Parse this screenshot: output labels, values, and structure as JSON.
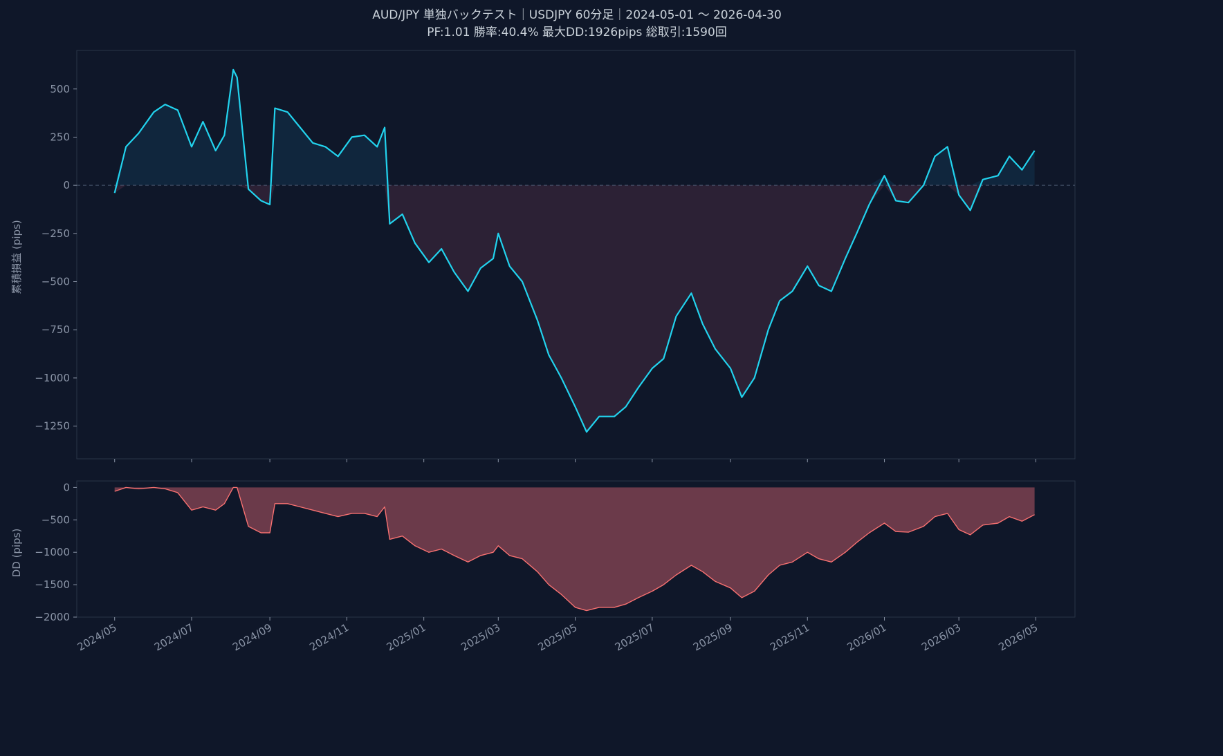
{
  "chart_data": [
    {
      "type": "line",
      "title": "AUD/JPY 単独バックテスト｜USDJPY 60分足｜2024-05-01 〜 2026-04-30",
      "subtitle": "PF:1.01  勝率:40.4%  最大DD:1926pips  総取引:1590回",
      "ylabel": "累積損益 (pips)",
      "ylim": [
        -1420,
        700
      ],
      "yticks": [
        500,
        250,
        0,
        -250,
        -500,
        -750,
        -1000,
        -1250
      ],
      "ytick_labels": [
        "500",
        "250",
        "0",
        "−250",
        "−500",
        "−750",
        "−1000",
        "−1250"
      ],
      "zero_line": true,
      "series": [
        {
          "color": "#22d3ee",
          "fill_positive": "#10263d",
          "fill_negative": "#2c2135",
          "x": [
            "2024-05-01",
            "2024-05-10",
            "2024-05-20",
            "2024-06-01",
            "2024-06-10",
            "2024-06-20",
            "2024-07-01",
            "2024-07-10",
            "2024-07-20",
            "2024-07-27",
            "2024-08-03",
            "2024-08-06",
            "2024-08-15",
            "2024-08-25",
            "2024-09-01",
            "2024-09-05",
            "2024-09-15",
            "2024-09-25",
            "2024-10-05",
            "2024-10-15",
            "2024-10-25",
            "2024-11-05",
            "2024-11-15",
            "2024-11-25",
            "2024-12-01",
            "2024-12-05",
            "2024-12-15",
            "2024-12-25",
            "2025-01-05",
            "2025-01-15",
            "2025-01-25",
            "2025-02-05",
            "2025-02-15",
            "2025-02-25",
            "2025-03-01",
            "2025-03-10",
            "2025-03-20",
            "2025-04-01",
            "2025-04-10",
            "2025-04-20",
            "2025-05-01",
            "2025-05-10",
            "2025-05-20",
            "2025-06-01",
            "2025-06-10",
            "2025-06-20",
            "2025-07-01",
            "2025-07-10",
            "2025-07-20",
            "2025-08-01",
            "2025-08-10",
            "2025-08-20",
            "2025-09-01",
            "2025-09-10",
            "2025-09-20",
            "2025-10-01",
            "2025-10-10",
            "2025-10-20",
            "2025-11-01",
            "2025-11-10",
            "2025-11-20",
            "2025-12-01",
            "2025-12-10",
            "2025-12-20",
            "2026-01-01",
            "2026-01-10",
            "2026-01-20",
            "2026-02-01",
            "2026-02-10",
            "2026-02-20",
            "2026-03-01",
            "2026-03-10",
            "2026-03-20",
            "2026-04-01",
            "2026-04-10",
            "2026-04-20",
            "2026-04-30"
          ],
          "y": [
            -40,
            200,
            270,
            380,
            420,
            390,
            200,
            330,
            180,
            260,
            600,
            560,
            -20,
            -80,
            -100,
            400,
            380,
            300,
            220,
            200,
            150,
            250,
            260,
            200,
            300,
            -200,
            -150,
            -300,
            -400,
            -330,
            -450,
            -550,
            -430,
            -380,
            -250,
            -420,
            -500,
            -700,
            -880,
            -1000,
            -1150,
            -1280,
            -1200,
            -1200,
            -1150,
            -1050,
            -950,
            -900,
            -680,
            -560,
            -720,
            -850,
            -950,
            -1100,
            -1000,
            -750,
            -600,
            -550,
            -420,
            -520,
            -550,
            -380,
            -250,
            -100,
            50,
            -80,
            -90,
            0,
            150,
            200,
            -50,
            -130,
            30,
            50,
            150,
            80,
            180
          ]
        }
      ]
    },
    {
      "type": "area",
      "ylabel": "DD (pips)",
      "ylim": [
        -2000,
        100
      ],
      "yticks": [
        0,
        -500,
        -1000,
        -1500,
        -2000
      ],
      "ytick_labels": [
        "0",
        "−500",
        "−1000",
        "−1500",
        "−2000"
      ],
      "xlim": [
        "2024-04-01",
        "2026-06-01"
      ],
      "xticks": [
        "2024-05-01",
        "2024-07-01",
        "2024-09-01",
        "2024-11-01",
        "2025-01-01",
        "2025-03-01",
        "2025-05-01",
        "2025-07-01",
        "2025-09-01",
        "2025-11-01",
        "2026-01-01",
        "2026-03-01",
        "2026-05-01"
      ],
      "xtick_labels": [
        "2024/05",
        "2024/07",
        "2024/09",
        "2024/11",
        "2025/01",
        "2025/03",
        "2025/05",
        "2025/07",
        "2025/09",
        "2025/11",
        "2026/01",
        "2026/03",
        "2026/05"
      ],
      "series": [
        {
          "color": "#f87171",
          "fill": "#6b3a4a",
          "x": [
            "2024-05-01",
            "2024-05-10",
            "2024-05-20",
            "2024-06-01",
            "2024-06-10",
            "2024-06-20",
            "2024-07-01",
            "2024-07-10",
            "2024-07-20",
            "2024-07-27",
            "2024-08-03",
            "2024-08-06",
            "2024-08-15",
            "2024-08-25",
            "2024-09-01",
            "2024-09-05",
            "2024-09-15",
            "2024-09-25",
            "2024-10-05",
            "2024-10-15",
            "2024-10-25",
            "2024-11-05",
            "2024-11-15",
            "2024-11-25",
            "2024-12-01",
            "2024-12-05",
            "2024-12-15",
            "2024-12-25",
            "2025-01-05",
            "2025-01-15",
            "2025-01-25",
            "2025-02-05",
            "2025-02-15",
            "2025-02-25",
            "2025-03-01",
            "2025-03-10",
            "2025-03-20",
            "2025-04-01",
            "2025-04-10",
            "2025-04-20",
            "2025-05-01",
            "2025-05-10",
            "2025-05-20",
            "2025-06-01",
            "2025-06-10",
            "2025-06-20",
            "2025-07-01",
            "2025-07-10",
            "2025-07-20",
            "2025-08-01",
            "2025-08-10",
            "2025-08-20",
            "2025-09-01",
            "2025-09-10",
            "2025-09-20",
            "2025-10-01",
            "2025-10-10",
            "2025-10-20",
            "2025-11-01",
            "2025-11-10",
            "2025-11-20",
            "2025-12-01",
            "2025-12-10",
            "2025-12-20",
            "2026-01-01",
            "2026-01-10",
            "2026-01-20",
            "2026-02-01",
            "2026-02-10",
            "2026-02-20",
            "2026-03-01",
            "2026-03-10",
            "2026-03-20",
            "2026-04-01",
            "2026-04-10",
            "2026-04-20",
            "2026-04-30"
          ],
          "y": [
            -60,
            0,
            -20,
            0,
            -20,
            -80,
            -350,
            -300,
            -350,
            -250,
            0,
            0,
            -600,
            -700,
            -700,
            -250,
            -250,
            -300,
            -350,
            -400,
            -450,
            -400,
            -400,
            -450,
            -300,
            -800,
            -750,
            -900,
            -1000,
            -950,
            -1050,
            -1150,
            -1050,
            -1000,
            -900,
            -1050,
            -1100,
            -1300,
            -1500,
            -1650,
            -1850,
            -1900,
            -1850,
            -1850,
            -1800,
            -1700,
            -1600,
            -1500,
            -1350,
            -1200,
            -1300,
            -1450,
            -1550,
            -1700,
            -1600,
            -1350,
            -1200,
            -1150,
            -1000,
            -1100,
            -1150,
            -1000,
            -850,
            -700,
            -550,
            -680,
            -690,
            -600,
            -450,
            -400,
            -650,
            -730,
            -580,
            -550,
            -450,
            -520,
            -420
          ]
        }
      ]
    }
  ]
}
